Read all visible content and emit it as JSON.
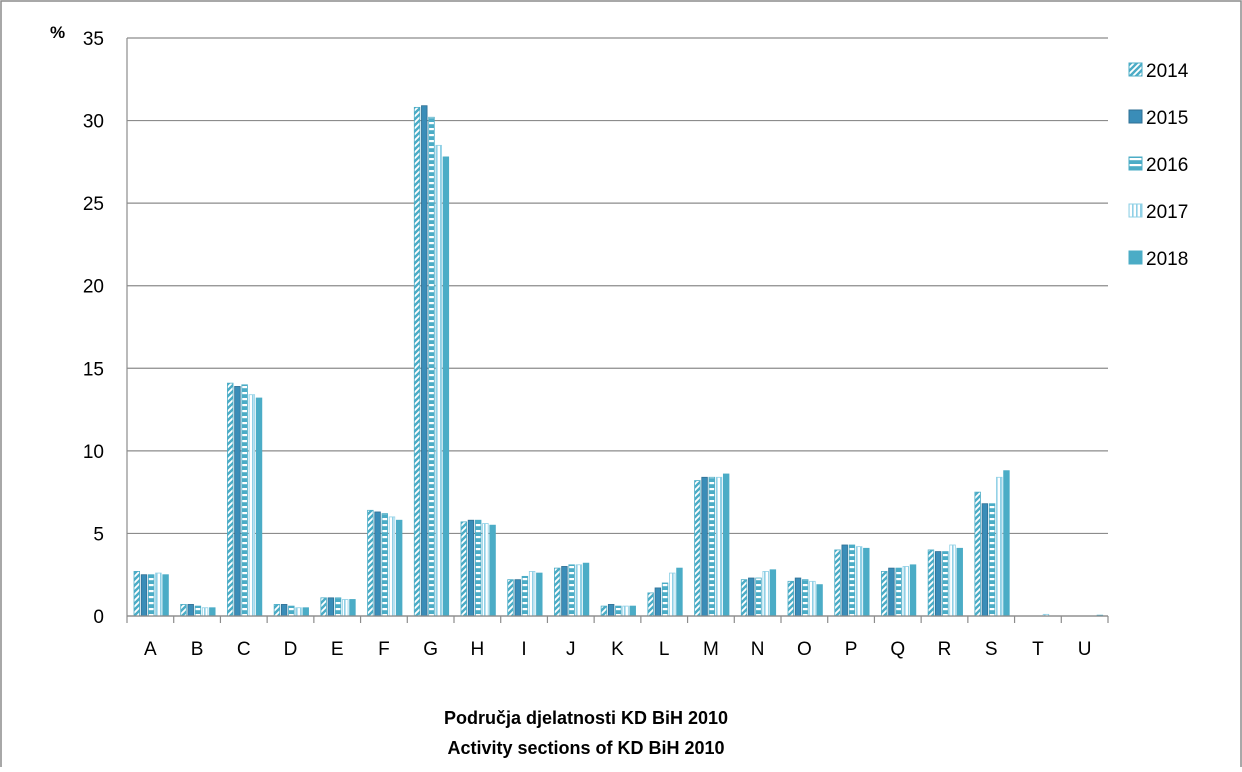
{
  "chart_data": {
    "type": "bar",
    "unit_label": "%",
    "xlabel_line1": "Područja djelatnosti KD BiH 2010",
    "xlabel_line2": "Activity sections of KD BiH 2010",
    "ylim": [
      0,
      35
    ],
    "yticks": [
      "0",
      "5",
      "10",
      "15",
      "20",
      "25",
      "30",
      "35"
    ],
    "grid": "horizontal",
    "legend_position": "right",
    "categories": [
      "A",
      "B",
      "C",
      "D",
      "E",
      "F",
      "G",
      "H",
      "I",
      "J",
      "K",
      "L",
      "M",
      "N",
      "O",
      "P",
      "Q",
      "R",
      "S",
      "T",
      "U"
    ],
    "series": [
      {
        "name": "2014",
        "values": [
          2.7,
          0.7,
          14.1,
          0.7,
          1.1,
          6.4,
          30.8,
          5.7,
          2.2,
          2.9,
          0.6,
          1.4,
          8.2,
          2.2,
          2.1,
          4.0,
          2.7,
          4.0,
          7.5,
          0.0,
          0.0
        ]
      },
      {
        "name": "2015",
        "values": [
          2.5,
          0.7,
          13.9,
          0.7,
          1.1,
          6.3,
          30.9,
          5.8,
          2.2,
          3.0,
          0.7,
          1.7,
          8.4,
          2.3,
          2.3,
          4.3,
          2.9,
          3.9,
          6.8,
          0.0,
          0.0
        ]
      },
      {
        "name": "2016",
        "values": [
          2.5,
          0.6,
          14.0,
          0.6,
          1.1,
          6.2,
          30.2,
          5.8,
          2.4,
          3.1,
          0.6,
          2.0,
          8.4,
          2.3,
          2.2,
          4.3,
          2.9,
          3.9,
          6.8,
          0.0,
          0.0
        ]
      },
      {
        "name": "2017",
        "values": [
          2.6,
          0.5,
          13.4,
          0.5,
          1.0,
          6.0,
          28.5,
          5.6,
          2.7,
          3.1,
          0.6,
          2.6,
          8.4,
          2.7,
          2.1,
          4.2,
          3.0,
          4.3,
          8.4,
          0.1,
          0.0
        ]
      },
      {
        "name": "2018",
        "values": [
          2.5,
          0.5,
          13.2,
          0.5,
          1.0,
          5.8,
          27.8,
          5.5,
          2.6,
          3.2,
          0.6,
          2.9,
          8.6,
          2.8,
          1.9,
          4.1,
          3.1,
          4.1,
          8.8,
          0.0,
          0.05
        ]
      }
    ],
    "series_colors": [
      "#4bacc6",
      "#3a8db8",
      "#4bacc6",
      "#8fd0e6",
      "#4bacc6"
    ],
    "series_patterns": [
      "diagonal-check",
      "solid-outlined",
      "horizontal-stripes",
      "vertical-stripes",
      "solid"
    ]
  }
}
